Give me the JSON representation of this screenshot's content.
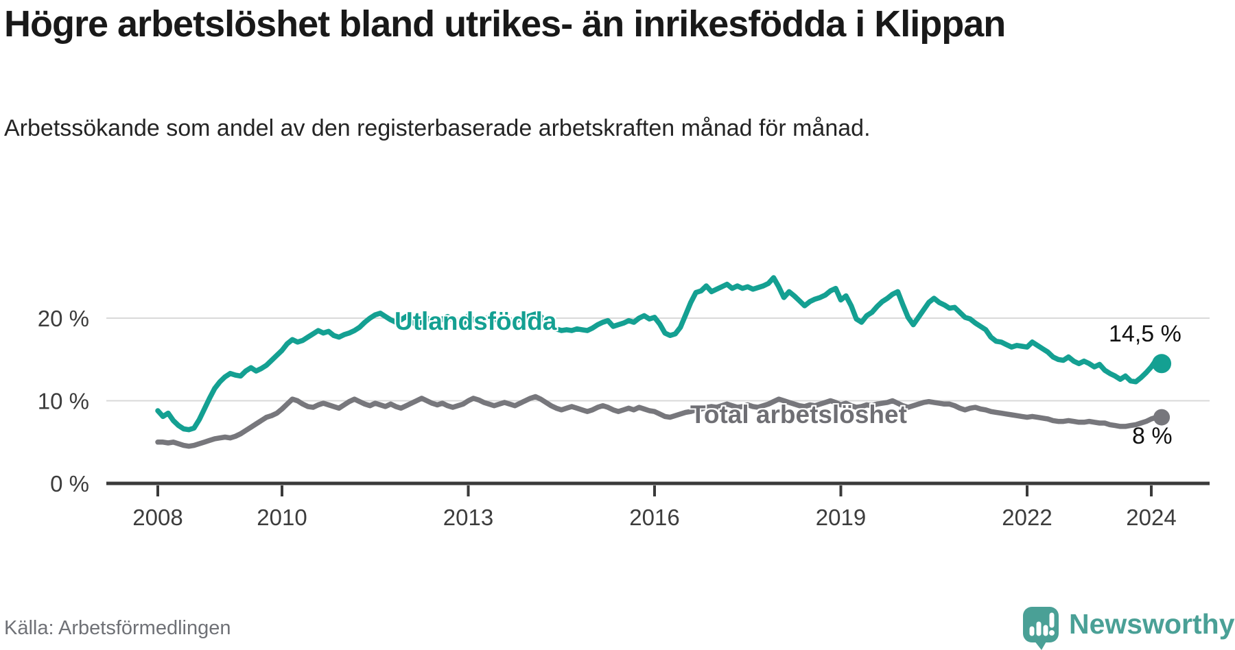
{
  "header": {
    "title": "Högre arbetslöshet bland utrikes- än inrikesfödda i Klippan",
    "subtitle": "Arbetssökande som andel av den registerbaserade arbetskraften månad för månad."
  },
  "footer": {
    "source": "Källa: Arbetsförmedlingen",
    "brand": "Newsworthy",
    "brand_color": "#4aa096"
  },
  "chart_data": {
    "type": "line",
    "title": "Högre arbetslöshet bland utrikes- än inrikesfödda i Klippan",
    "subtitle": "Arbetssökande som andel av den registerbaserade arbetskraften månad för månad.",
    "unit": "%",
    "frequency": "monthly",
    "start": "2008-01",
    "end": "2024-03",
    "grid": true,
    "legend": "inline-labels",
    "x_axis": {
      "tick_years": [
        2008,
        2010,
        2013,
        2016,
        2019,
        2022,
        2024
      ],
      "range": [
        2008,
        2024.25
      ]
    },
    "y_axis": {
      "range": [
        0,
        26
      ],
      "ticks": [
        {
          "value": 0,
          "label": "0 %"
        },
        {
          "value": 10,
          "label": "10 %"
        },
        {
          "value": 20,
          "label": "20 %"
        }
      ]
    },
    "axis_color": "#3a3a3a",
    "gridline_color": "#d9d9d9",
    "series": [
      {
        "name": "Utlandsfödda",
        "color": "#14a092",
        "end_label": "14,5 %",
        "end_value": 14.5,
        "values": [
          8.8,
          8.1,
          8.5,
          7.6,
          7.0,
          6.6,
          6.5,
          6.7,
          7.7,
          9.0,
          10.3,
          11.5,
          12.3,
          12.9,
          13.3,
          13.1,
          13.0,
          13.6,
          14.0,
          13.6,
          13.9,
          14.3,
          14.9,
          15.5,
          16.1,
          16.9,
          17.4,
          17.1,
          17.3,
          17.7,
          18.1,
          18.5,
          18.2,
          18.4,
          17.9,
          17.7,
          18.0,
          18.2,
          18.5,
          18.9,
          19.5,
          20.0,
          20.4,
          20.6,
          20.2,
          19.8,
          19.5,
          19.8,
          20.2,
          19.6,
          19.2,
          19.6,
          20.0,
          19.7,
          19.4,
          19.9,
          20.2,
          19.8,
          19.5,
          19.3,
          20.3,
          19.8,
          19.6,
          19.9,
          20.1,
          19.8,
          19.9,
          20.1,
          19.8,
          19.6,
          19.9,
          20.1,
          20.3,
          20.5,
          20.2,
          19.6,
          19.1,
          18.7,
          18.5,
          18.6,
          18.5,
          18.7,
          18.6,
          18.5,
          18.8,
          19.2,
          19.5,
          19.7,
          19.0,
          19.2,
          19.4,
          19.7,
          19.5,
          20.0,
          20.3,
          19.9,
          20.1,
          19.3,
          18.2,
          17.9,
          18.1,
          18.9,
          20.4,
          21.9,
          23.1,
          23.3,
          23.9,
          23.2,
          23.5,
          23.8,
          24.1,
          23.6,
          23.9,
          23.6,
          23.8,
          23.5,
          23.7,
          23.9,
          24.2,
          24.9,
          23.8,
          22.5,
          23.2,
          22.7,
          22.1,
          21.5,
          22.0,
          22.3,
          22.5,
          22.8,
          23.3,
          23.6,
          22.2,
          22.7,
          21.5,
          19.9,
          19.5,
          20.3,
          20.7,
          21.4,
          22.0,
          22.4,
          22.9,
          23.2,
          21.6,
          20.1,
          19.2,
          20.1,
          21.0,
          21.9,
          22.4,
          21.9,
          21.6,
          21.2,
          21.3,
          20.7,
          20.1,
          19.9,
          19.4,
          19.0,
          18.6,
          17.7,
          17.2,
          17.1,
          16.8,
          16.5,
          16.7,
          16.6,
          16.5,
          17.1,
          16.7,
          16.3,
          15.9,
          15.3,
          15.0,
          14.9,
          15.3,
          14.8,
          14.5,
          14.8,
          14.5,
          14.1,
          14.4,
          13.7,
          13.3,
          13.0,
          12.6,
          13.0,
          12.4,
          12.3,
          12.8,
          13.4,
          14.1,
          15.0,
          14.5
        ]
      },
      {
        "name": "Total arbetslöshet",
        "color": "#77777c",
        "label_color": "#6f6f74",
        "end_label": "8 %",
        "end_value": 8.0,
        "values": [
          5.0,
          5.0,
          4.9,
          5.0,
          4.8,
          4.6,
          4.5,
          4.6,
          4.8,
          5.0,
          5.2,
          5.4,
          5.5,
          5.6,
          5.5,
          5.7,
          6.0,
          6.4,
          6.8,
          7.2,
          7.6,
          8.0,
          8.2,
          8.5,
          9.0,
          9.6,
          10.2,
          10.0,
          9.6,
          9.3,
          9.2,
          9.5,
          9.7,
          9.5,
          9.3,
          9.1,
          9.5,
          9.9,
          10.2,
          9.9,
          9.6,
          9.4,
          9.7,
          9.5,
          9.3,
          9.6,
          9.3,
          9.1,
          9.4,
          9.7,
          10.0,
          10.3,
          10.0,
          9.7,
          9.5,
          9.7,
          9.4,
          9.2,
          9.4,
          9.6,
          10.0,
          10.3,
          10.1,
          9.8,
          9.6,
          9.4,
          9.6,
          9.8,
          9.6,
          9.4,
          9.7,
          10.0,
          10.3,
          10.5,
          10.2,
          9.8,
          9.4,
          9.1,
          8.9,
          9.1,
          9.3,
          9.1,
          8.9,
          8.7,
          8.9,
          9.2,
          9.4,
          9.2,
          8.9,
          8.7,
          8.9,
          9.1,
          8.9,
          9.2,
          9.0,
          8.8,
          8.7,
          8.4,
          8.1,
          8.0,
          8.2,
          8.4,
          8.6,
          8.7,
          8.9,
          9.0,
          9.2,
          9.3,
          9.2,
          9.4,
          9.6,
          9.4,
          9.2,
          9.3,
          9.5,
          9.3,
          9.2,
          9.4,
          9.6,
          9.9,
          10.2,
          10.0,
          9.8,
          9.6,
          9.4,
          9.3,
          9.5,
          9.4,
          9.6,
          9.8,
          10.0,
          9.8,
          9.5,
          9.7,
          9.4,
          9.2,
          9.3,
          9.5,
          9.4,
          9.6,
          9.7,
          9.8,
          10.0,
          9.7,
          9.4,
          9.2,
          9.4,
          9.6,
          9.8,
          9.9,
          9.8,
          9.7,
          9.6,
          9.6,
          9.4,
          9.1,
          8.9,
          9.1,
          9.2,
          9.0,
          8.9,
          8.7,
          8.6,
          8.5,
          8.4,
          8.3,
          8.2,
          8.1,
          8.0,
          8.1,
          8.0,
          7.9,
          7.8,
          7.6,
          7.5,
          7.5,
          7.6,
          7.5,
          7.4,
          7.4,
          7.5,
          7.4,
          7.3,
          7.3,
          7.1,
          7.0,
          6.9,
          6.9,
          7.0,
          7.1,
          7.3,
          7.5,
          7.8,
          8.0,
          8.0
        ]
      }
    ],
    "source": "Källa: Arbetsförmedlingen"
  }
}
